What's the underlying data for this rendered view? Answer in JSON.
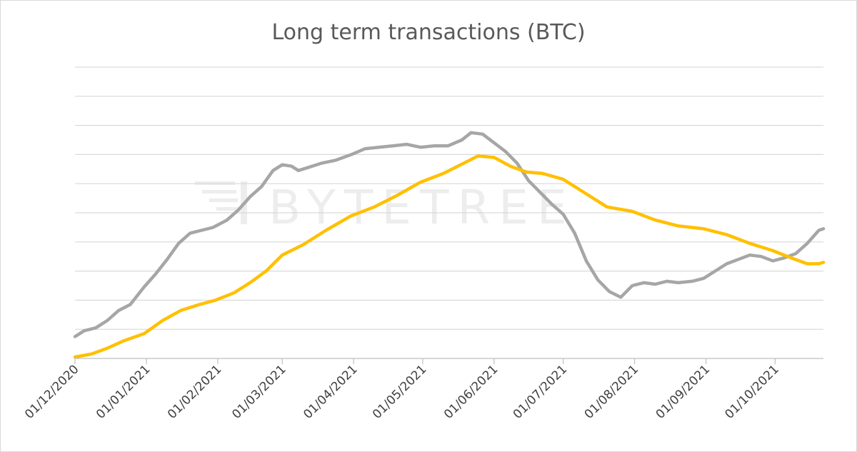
{
  "chart_data": {
    "type": "line",
    "title": "Long term transactions (BTC)",
    "xlabel": "",
    "ylabel": "",
    "y_axis_labels_shown": false,
    "x_tick_labels": [
      "01/12/2020",
      "01/01/2021",
      "01/02/2021",
      "01/03/2021",
      "01/04/2021",
      "01/05/2021",
      "01/06/2021",
      "01/07/2021",
      "01/08/2021",
      "01/09/2021",
      "01/10/2021"
    ],
    "x_range": [
      "2020-12-01",
      "2021-10-22"
    ],
    "ylim": [
      0,
      10
    ],
    "grid": "horizontal",
    "gridline_values": [
      1,
      2,
      3,
      4,
      5,
      6,
      7,
      8,
      9,
      10
    ],
    "legend": "none",
    "watermark": "BYTETREE",
    "series": [
      {
        "color": "#a6a6a6",
        "points": [
          [
            "2020-12-01",
            0.75
          ],
          [
            "2020-12-05",
            0.95
          ],
          [
            "2020-12-10",
            1.05
          ],
          [
            "2020-12-15",
            1.3
          ],
          [
            "2020-12-20",
            1.65
          ],
          [
            "2020-12-25",
            1.85
          ],
          [
            "2020-12-31",
            2.45
          ],
          [
            "2021-01-05",
            2.9
          ],
          [
            "2021-01-10",
            3.4
          ],
          [
            "2021-01-15",
            3.95
          ],
          [
            "2021-01-20",
            4.3
          ],
          [
            "2021-01-25",
            4.4
          ],
          [
            "2021-01-30",
            4.5
          ],
          [
            "2021-02-05",
            4.75
          ],
          [
            "2021-02-10",
            5.1
          ],
          [
            "2021-02-15",
            5.55
          ],
          [
            "2021-02-20",
            5.9
          ],
          [
            "2021-02-25",
            6.45
          ],
          [
            "2021-03-01",
            6.65
          ],
          [
            "2021-03-05",
            6.6
          ],
          [
            "2021-03-08",
            6.45
          ],
          [
            "2021-03-12",
            6.55
          ],
          [
            "2021-03-18",
            6.7
          ],
          [
            "2021-03-24",
            6.8
          ],
          [
            "2021-03-31",
            7.0
          ],
          [
            "2021-04-06",
            7.2
          ],
          [
            "2021-04-12",
            7.25
          ],
          [
            "2021-04-18",
            7.3
          ],
          [
            "2021-04-24",
            7.35
          ],
          [
            "2021-04-30",
            7.25
          ],
          [
            "2021-05-06",
            7.3
          ],
          [
            "2021-05-12",
            7.3
          ],
          [
            "2021-05-18",
            7.5
          ],
          [
            "2021-05-22",
            7.75
          ],
          [
            "2021-05-27",
            7.7
          ],
          [
            "2021-06-01",
            7.4
          ],
          [
            "2021-06-06",
            7.1
          ],
          [
            "2021-06-11",
            6.7
          ],
          [
            "2021-06-16",
            6.1
          ],
          [
            "2021-06-21",
            5.7
          ],
          [
            "2021-06-26",
            5.3
          ],
          [
            "2021-07-01",
            4.95
          ],
          [
            "2021-07-06",
            4.3
          ],
          [
            "2021-07-11",
            3.35
          ],
          [
            "2021-07-16",
            2.7
          ],
          [
            "2021-07-21",
            2.3
          ],
          [
            "2021-07-26",
            2.1
          ],
          [
            "2021-07-31",
            2.5
          ],
          [
            "2021-08-05",
            2.6
          ],
          [
            "2021-08-10",
            2.55
          ],
          [
            "2021-08-15",
            2.65
          ],
          [
            "2021-08-20",
            2.6
          ],
          [
            "2021-08-26",
            2.65
          ],
          [
            "2021-08-31",
            2.75
          ],
          [
            "2021-09-05",
            3.0
          ],
          [
            "2021-09-10",
            3.25
          ],
          [
            "2021-09-15",
            3.4
          ],
          [
            "2021-09-20",
            3.55
          ],
          [
            "2021-09-25",
            3.5
          ],
          [
            "2021-09-30",
            3.35
          ],
          [
            "2021-10-05",
            3.45
          ],
          [
            "2021-10-10",
            3.6
          ],
          [
            "2021-10-15",
            3.95
          ],
          [
            "2021-10-20",
            4.4
          ],
          [
            "2021-10-22",
            4.45
          ]
        ]
      },
      {
        "color": "#ffc000",
        "points": [
          [
            "2020-12-01",
            0.05
          ],
          [
            "2020-12-08",
            0.15
          ],
          [
            "2020-12-15",
            0.35
          ],
          [
            "2020-12-22",
            0.6
          ],
          [
            "2020-12-31",
            0.85
          ],
          [
            "2021-01-08",
            1.3
          ],
          [
            "2021-01-16",
            1.65
          ],
          [
            "2021-01-24",
            1.85
          ],
          [
            "2021-01-31",
            2.0
          ],
          [
            "2021-02-08",
            2.25
          ],
          [
            "2021-02-15",
            2.6
          ],
          [
            "2021-02-22",
            3.0
          ],
          [
            "2021-03-01",
            3.55
          ],
          [
            "2021-03-10",
            3.9
          ],
          [
            "2021-03-20",
            4.4
          ],
          [
            "2021-03-31",
            4.9
          ],
          [
            "2021-04-10",
            5.2
          ],
          [
            "2021-04-20",
            5.6
          ],
          [
            "2021-04-30",
            6.05
          ],
          [
            "2021-05-10",
            6.35
          ],
          [
            "2021-05-20",
            6.75
          ],
          [
            "2021-05-25",
            6.95
          ],
          [
            "2021-06-01",
            6.9
          ],
          [
            "2021-06-08",
            6.6
          ],
          [
            "2021-06-15",
            6.4
          ],
          [
            "2021-06-22",
            6.35
          ],
          [
            "2021-07-01",
            6.15
          ],
          [
            "2021-07-10",
            5.7
          ],
          [
            "2021-07-20",
            5.2
          ],
          [
            "2021-07-31",
            5.05
          ],
          [
            "2021-08-10",
            4.75
          ],
          [
            "2021-08-20",
            4.55
          ],
          [
            "2021-08-31",
            4.45
          ],
          [
            "2021-09-10",
            4.25
          ],
          [
            "2021-09-20",
            3.95
          ],
          [
            "2021-09-30",
            3.7
          ],
          [
            "2021-10-08",
            3.45
          ],
          [
            "2021-10-15",
            3.25
          ],
          [
            "2021-10-20",
            3.25
          ],
          [
            "2021-10-22",
            3.3
          ]
        ]
      }
    ]
  }
}
